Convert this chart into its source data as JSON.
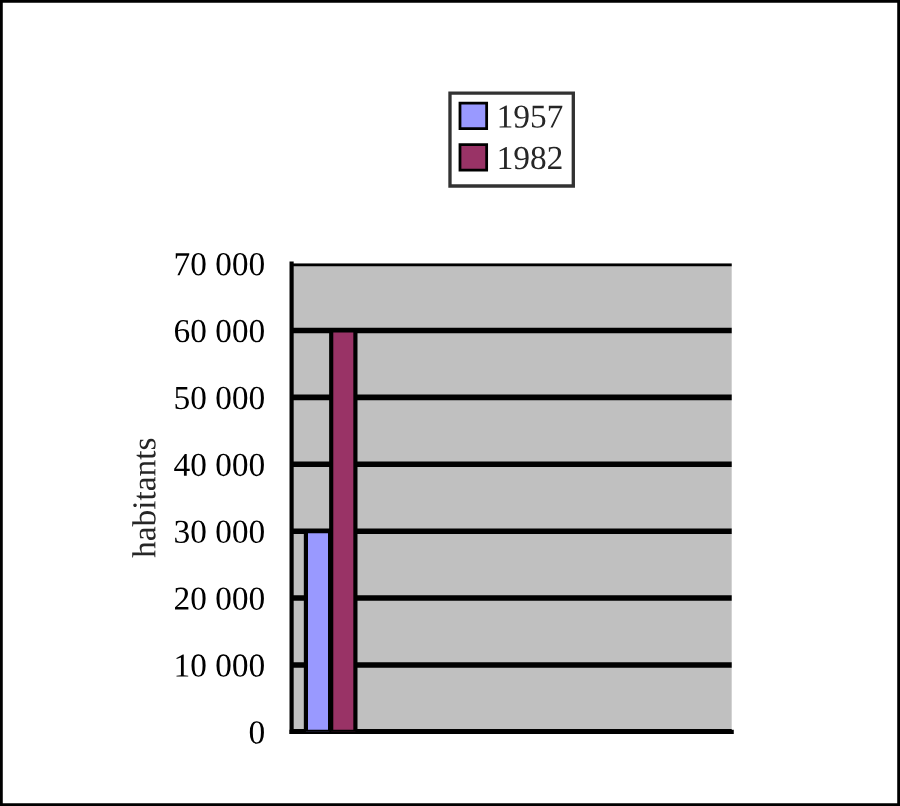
{
  "chart_data": {
    "type": "bar",
    "ylabel": "habitants",
    "categories": [
      null,
      null,
      null,
      null
    ],
    "series": [
      {
        "name": "1957",
        "color": "#9999ff",
        "values": [
          30000,
          null,
          null,
          null
        ]
      },
      {
        "name": "1982",
        "color": "#993366",
        "values": [
          60000,
          null,
          null,
          null
        ]
      }
    ],
    "ylim": [
      0,
      70000
    ],
    "yticks": [
      {
        "value": 0,
        "label": "0"
      },
      {
        "value": 10000,
        "label": "10 000"
      },
      {
        "value": 20000,
        "label": "20 000"
      },
      {
        "value": 30000,
        "label": "30 000"
      },
      {
        "value": 40000,
        "label": "40 000"
      },
      {
        "value": 50000,
        "label": "50 000"
      },
      {
        "value": 60000,
        "label": "60 000"
      },
      {
        "value": 70000,
        "label": "70 000"
      }
    ],
    "grid": "y",
    "legend": "top",
    "tick_labels": "y"
  }
}
